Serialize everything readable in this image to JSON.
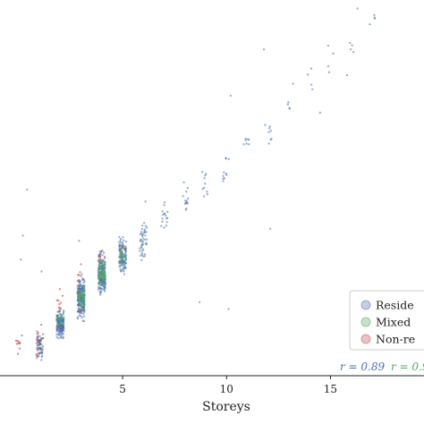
{
  "chart_data": {
    "type": "scatter",
    "xlabel": "Storeys",
    "ylabel": "",
    "title": "",
    "xlim": [
      -0.9,
      19.5
    ],
    "ylim": [
      0,
      22
    ],
    "x_ticks": [
      {
        "value": 5,
        "label": "5"
      },
      {
        "value": 10,
        "label": "10"
      },
      {
        "value": 15,
        "label": "15"
      }
    ],
    "grid": false,
    "legend_position": "bottom-right",
    "colors": {
      "residential": "#4c72b0",
      "mixed": "#55a868",
      "non_residential": "#c44e52"
    },
    "series": [
      {
        "key": "residential",
        "name": "Reside",
        "color": "#4c72b0",
        "groups": [
          {
            "storeys": 1,
            "median": 1.7,
            "spread": 0.35,
            "n": 55
          },
          {
            "storeys": 2,
            "median": 3.0,
            "spread": 0.35,
            "n": 170
          },
          {
            "storeys": 3,
            "median": 4.6,
            "spread": 0.55,
            "n": 230
          },
          {
            "storeys": 4,
            "median": 5.9,
            "spread": 0.55,
            "n": 210
          },
          {
            "storeys": 5,
            "median": 7.0,
            "spread": 0.45,
            "n": 110
          },
          {
            "storeys": 6,
            "median": 7.8,
            "spread": 0.55,
            "n": 40
          },
          {
            "storeys": 7,
            "median": 9.5,
            "spread": 0.35,
            "n": 16
          },
          {
            "storeys": 8,
            "median": 10.3,
            "spread": 0.45,
            "n": 14
          },
          {
            "storeys": 9,
            "median": 11.2,
            "spread": 0.4,
            "n": 10
          },
          {
            "storeys": 10,
            "median": 12.3,
            "spread": 0.6,
            "n": 10
          },
          {
            "storeys": 11,
            "median": 13.6,
            "spread": 0.4,
            "n": 7
          },
          {
            "storeys": 12,
            "median": 14.6,
            "spread": 0.5,
            "n": 8
          },
          {
            "storeys": 13,
            "median": 15.8,
            "spread": 0.3,
            "n": 4
          },
          {
            "storeys": 14,
            "median": 17.4,
            "spread": 0.5,
            "n": 4
          },
          {
            "storeys": 15,
            "median": 18.6,
            "spread": 0.5,
            "n": 4
          },
          {
            "storeys": 16,
            "median": 19.6,
            "spread": 0.5,
            "n": 4
          },
          {
            "storeys": 17,
            "median": 20.8,
            "spread": 0.5,
            "n": 4
          }
        ],
        "outliers": [
          {
            "x": 0.1,
            "y": 6.8
          },
          {
            "x": 0.2,
            "y": 8.2
          },
          {
            "x": 0.4,
            "y": 10.9
          },
          {
            "x": 1.1,
            "y": 6.1
          },
          {
            "x": 2.9,
            "y": 7.9
          },
          {
            "x": 6.1,
            "y": 10.2
          },
          {
            "x": 8.7,
            "y": 4.3
          },
          {
            "x": 10.1,
            "y": 3.9
          },
          {
            "x": 10.2,
            "y": 16.4
          },
          {
            "x": 11.8,
            "y": 19.1
          },
          {
            "x": 12.1,
            "y": 8.6
          },
          {
            "x": 13.2,
            "y": 17.1
          },
          {
            "x": 14.5,
            "y": 15.4
          },
          {
            "x": 15.8,
            "y": 17.6
          },
          {
            "x": 16.3,
            "y": 21.5
          }
        ]
      },
      {
        "key": "mixed",
        "name": "Mixed",
        "color": "#55a868",
        "groups": [
          {
            "storeys": 1,
            "median": 1.8,
            "spread": 0.2,
            "n": 4
          },
          {
            "storeys": 2,
            "median": 3.2,
            "spread": 0.3,
            "n": 20
          },
          {
            "storeys": 3,
            "median": 4.6,
            "spread": 0.45,
            "n": 60
          },
          {
            "storeys": 4,
            "median": 6.0,
            "spread": 0.45,
            "n": 70
          },
          {
            "storeys": 5,
            "median": 7.0,
            "spread": 0.35,
            "n": 30
          },
          {
            "storeys": 6,
            "median": 7.9,
            "spread": 0.3,
            "n": 4
          }
        ],
        "outliers": []
      },
      {
        "key": "non_residential",
        "name": "Non-re",
        "color": "#c44e52",
        "groups": [
          {
            "storeys": 0,
            "median": 2.0,
            "spread": 0.4,
            "n": 10
          },
          {
            "storeys": 1,
            "median": 2.2,
            "spread": 0.6,
            "n": 18
          },
          {
            "storeys": 2,
            "median": 3.8,
            "spread": 0.6,
            "n": 12
          },
          {
            "storeys": 3,
            "median": 5.4,
            "spread": 0.8,
            "n": 10
          },
          {
            "storeys": 4,
            "median": 6.6,
            "spread": 0.6,
            "n": 8
          },
          {
            "storeys": 5,
            "median": 7.2,
            "spread": 0.3,
            "n": 4
          }
        ],
        "outliers": []
      }
    ],
    "annotations": [
      {
        "text": "r = 0.89",
        "color": "#4c72b0"
      },
      {
        "text": "r = 0.9",
        "color": "#55a868"
      }
    ]
  }
}
